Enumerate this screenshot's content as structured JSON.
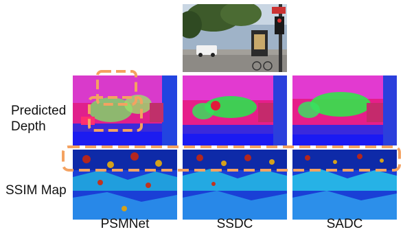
{
  "figure": {
    "row_labels": {
      "depth_line1": "Predicted",
      "depth_line2": "Depth",
      "ssim": "SSIM Map"
    },
    "column_labels": [
      "PSMNet",
      "SSDC",
      "SADC"
    ],
    "highlight_color": "#f4a261"
  }
}
